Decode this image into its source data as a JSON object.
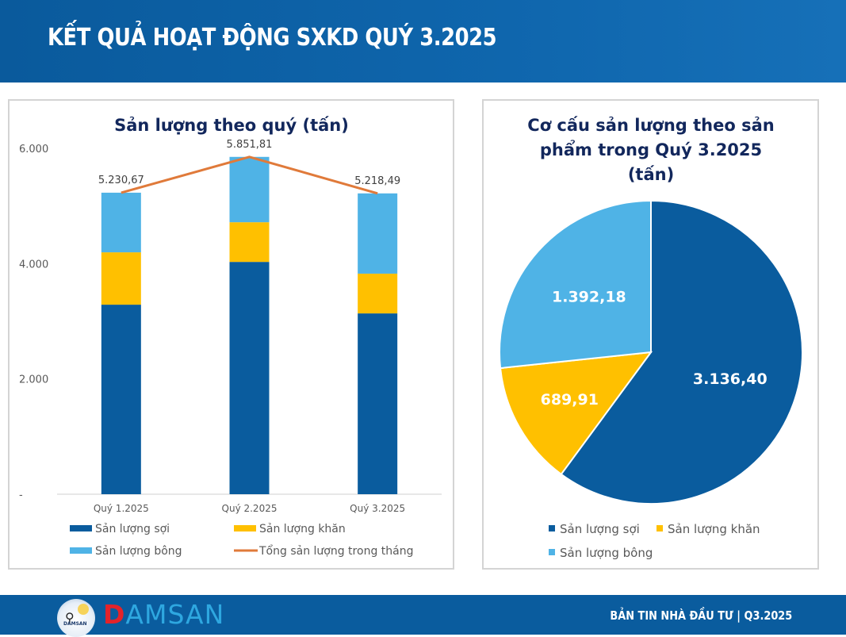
{
  "header": {
    "title": "KẾT QUẢ HOẠT ĐỘNG SXKD QUÝ 3.2025"
  },
  "colors": {
    "header_bg": "#0f66ad",
    "soi": "#0a5c9e",
    "khan": "#ffc000",
    "bong": "#4fb3e6",
    "total_line": "#e07a3a",
    "title_text": "#12275c",
    "axis_text": "#595959"
  },
  "chart_data": [
    {
      "type": "bar",
      "stacked": true,
      "title": "Sản lượng theo quý (tấn)",
      "xlabel": "",
      "ylabel": "",
      "categories": [
        "Quý 1.2025",
        "Quý 2.2025",
        "Quý 3.2025"
      ],
      "series": [
        {
          "name": "Sản lượng sợi",
          "type": "bar",
          "color": "#0a5c9e",
          "values": [
            3288,
            4030,
            3136.4
          ]
        },
        {
          "name": "Sản lượng khăn",
          "type": "bar",
          "color": "#ffc000",
          "values": [
            908,
            688,
            689.91
          ]
        },
        {
          "name": "Sản lượng bông",
          "type": "bar",
          "color": "#4fb3e6",
          "values": [
            1034.67,
            1133.81,
            1392.18
          ]
        },
        {
          "name": "Tổng sản lượng trong tháng",
          "type": "line",
          "color": "#e07a3a",
          "values": [
            5230.67,
            5851.81,
            5218.49
          ]
        }
      ],
      "data_labels": [
        "5.230,67",
        "5.851,81",
        "5.218,49"
      ],
      "ylim": [
        0,
        6000
      ],
      "yticks": [
        0,
        2000,
        4000,
        6000
      ],
      "ytick_labels": [
        "-",
        "2.000",
        "4.000",
        "6.000"
      ],
      "grid": false,
      "legend": {
        "position": "bottom",
        "entries": [
          "Sản lượng sợi",
          "Sản lượng khăn",
          "Sản lượng bông",
          "Tổng sản lượng trong tháng"
        ]
      }
    },
    {
      "type": "pie",
      "title_lines": [
        "Cơ cấu sản lượng theo sản",
        "phẩm trong Quý 3.2025",
        "(tấn)"
      ],
      "slices": [
        {
          "name": "Sản lượng sợi",
          "value": 3136.4,
          "label": "3.136,40",
          "color": "#0a5c9e"
        },
        {
          "name": "Sản lượng khăn",
          "value": 689.91,
          "label": "689,91",
          "color": "#ffc000"
        },
        {
          "name": "Sản lượng bông",
          "value": 1392.18,
          "label": "1.392,18",
          "color": "#4fb3e6"
        }
      ],
      "start_angle_deg": 0,
      "direction": "clockwise",
      "legend": {
        "position": "bottom",
        "entries": [
          "Sản lượng sợi",
          "Sản lượng khăn",
          "Sản lượng bông"
        ]
      }
    }
  ],
  "footer": {
    "brand_first": "D",
    "brand_rest": "AMSAN",
    "logo_mini_text": "DAMSAN",
    "subtitle": "BẢN TIN NHÀ ĐẦU TƯ  |  Q3.2025"
  }
}
